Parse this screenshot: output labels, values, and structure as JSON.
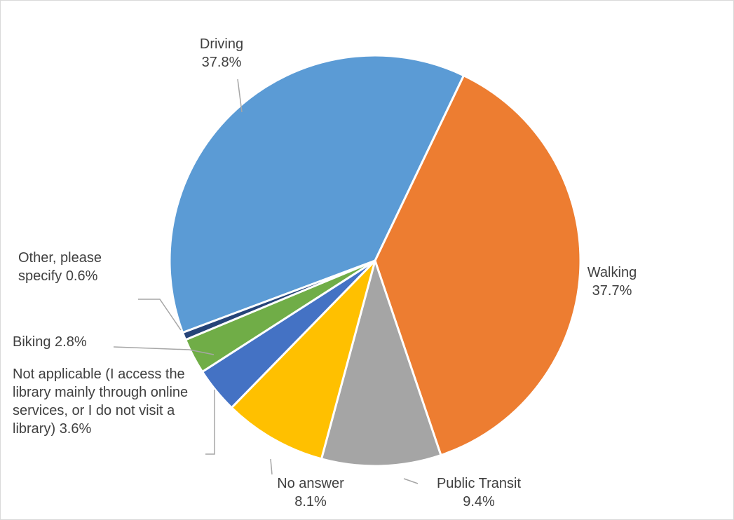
{
  "chart_data": {
    "type": "pie",
    "categories": [
      "Driving",
      "Walking",
      "Public Transit",
      "No answer",
      "Not applicable (I access the library mainly through online services, or I do not visit a library)",
      "Biking",
      "Other, please specify"
    ],
    "values": [
      37.8,
      37.7,
      9.4,
      8.1,
      3.6,
      2.8,
      0.6
    ],
    "value_labels": [
      "37.8%",
      "37.7%",
      "9.4%",
      "8.1%",
      "3.6%",
      "2.8%",
      "0.6%"
    ],
    "colors": [
      "#5b9bd5",
      "#ed7d31",
      "#a5a5a5",
      "#ffc000",
      "#4472c4",
      "#70ad47",
      "#264478"
    ]
  }
}
